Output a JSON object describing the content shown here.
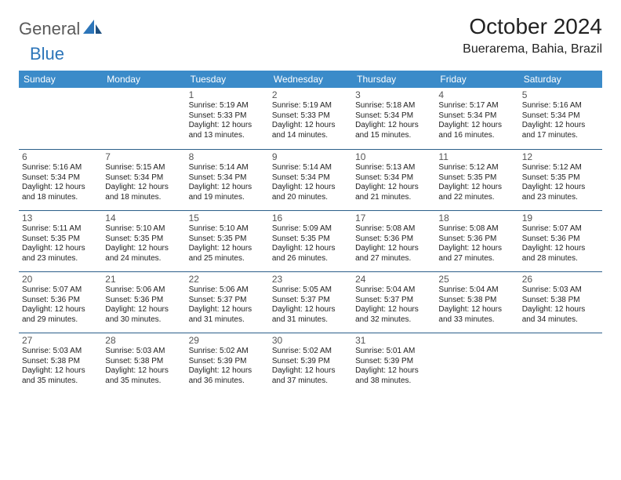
{
  "logo": {
    "part1": "General",
    "part2": "Blue"
  },
  "title": "October 2024",
  "location": "Buerarema, Bahia, Brazil",
  "colors": {
    "header_bg": "#3b8bc9",
    "header_text": "#ffffff",
    "border": "#2c5f8a",
    "logo_gray": "#5a5a5a",
    "logo_blue": "#2c75b9",
    "text": "#222222"
  },
  "day_names": [
    "Sunday",
    "Monday",
    "Tuesday",
    "Wednesday",
    "Thursday",
    "Friday",
    "Saturday"
  ],
  "weeks": [
    [
      null,
      null,
      {
        "d": "1",
        "sr": "Sunrise: 5:19 AM",
        "ss": "Sunset: 5:33 PM",
        "dl1": "Daylight: 12 hours",
        "dl2": "and 13 minutes."
      },
      {
        "d": "2",
        "sr": "Sunrise: 5:19 AM",
        "ss": "Sunset: 5:33 PM",
        "dl1": "Daylight: 12 hours",
        "dl2": "and 14 minutes."
      },
      {
        "d": "3",
        "sr": "Sunrise: 5:18 AM",
        "ss": "Sunset: 5:34 PM",
        "dl1": "Daylight: 12 hours",
        "dl2": "and 15 minutes."
      },
      {
        "d": "4",
        "sr": "Sunrise: 5:17 AM",
        "ss": "Sunset: 5:34 PM",
        "dl1": "Daylight: 12 hours",
        "dl2": "and 16 minutes."
      },
      {
        "d": "5",
        "sr": "Sunrise: 5:16 AM",
        "ss": "Sunset: 5:34 PM",
        "dl1": "Daylight: 12 hours",
        "dl2": "and 17 minutes."
      }
    ],
    [
      {
        "d": "6",
        "sr": "Sunrise: 5:16 AM",
        "ss": "Sunset: 5:34 PM",
        "dl1": "Daylight: 12 hours",
        "dl2": "and 18 minutes."
      },
      {
        "d": "7",
        "sr": "Sunrise: 5:15 AM",
        "ss": "Sunset: 5:34 PM",
        "dl1": "Daylight: 12 hours",
        "dl2": "and 18 minutes."
      },
      {
        "d": "8",
        "sr": "Sunrise: 5:14 AM",
        "ss": "Sunset: 5:34 PM",
        "dl1": "Daylight: 12 hours",
        "dl2": "and 19 minutes."
      },
      {
        "d": "9",
        "sr": "Sunrise: 5:14 AM",
        "ss": "Sunset: 5:34 PM",
        "dl1": "Daylight: 12 hours",
        "dl2": "and 20 minutes."
      },
      {
        "d": "10",
        "sr": "Sunrise: 5:13 AM",
        "ss": "Sunset: 5:34 PM",
        "dl1": "Daylight: 12 hours",
        "dl2": "and 21 minutes."
      },
      {
        "d": "11",
        "sr": "Sunrise: 5:12 AM",
        "ss": "Sunset: 5:35 PM",
        "dl1": "Daylight: 12 hours",
        "dl2": "and 22 minutes."
      },
      {
        "d": "12",
        "sr": "Sunrise: 5:12 AM",
        "ss": "Sunset: 5:35 PM",
        "dl1": "Daylight: 12 hours",
        "dl2": "and 23 minutes."
      }
    ],
    [
      {
        "d": "13",
        "sr": "Sunrise: 5:11 AM",
        "ss": "Sunset: 5:35 PM",
        "dl1": "Daylight: 12 hours",
        "dl2": "and 23 minutes."
      },
      {
        "d": "14",
        "sr": "Sunrise: 5:10 AM",
        "ss": "Sunset: 5:35 PM",
        "dl1": "Daylight: 12 hours",
        "dl2": "and 24 minutes."
      },
      {
        "d": "15",
        "sr": "Sunrise: 5:10 AM",
        "ss": "Sunset: 5:35 PM",
        "dl1": "Daylight: 12 hours",
        "dl2": "and 25 minutes."
      },
      {
        "d": "16",
        "sr": "Sunrise: 5:09 AM",
        "ss": "Sunset: 5:35 PM",
        "dl1": "Daylight: 12 hours",
        "dl2": "and 26 minutes."
      },
      {
        "d": "17",
        "sr": "Sunrise: 5:08 AM",
        "ss": "Sunset: 5:36 PM",
        "dl1": "Daylight: 12 hours",
        "dl2": "and 27 minutes."
      },
      {
        "d": "18",
        "sr": "Sunrise: 5:08 AM",
        "ss": "Sunset: 5:36 PM",
        "dl1": "Daylight: 12 hours",
        "dl2": "and 27 minutes."
      },
      {
        "d": "19",
        "sr": "Sunrise: 5:07 AM",
        "ss": "Sunset: 5:36 PM",
        "dl1": "Daylight: 12 hours",
        "dl2": "and 28 minutes."
      }
    ],
    [
      {
        "d": "20",
        "sr": "Sunrise: 5:07 AM",
        "ss": "Sunset: 5:36 PM",
        "dl1": "Daylight: 12 hours",
        "dl2": "and 29 minutes."
      },
      {
        "d": "21",
        "sr": "Sunrise: 5:06 AM",
        "ss": "Sunset: 5:36 PM",
        "dl1": "Daylight: 12 hours",
        "dl2": "and 30 minutes."
      },
      {
        "d": "22",
        "sr": "Sunrise: 5:06 AM",
        "ss": "Sunset: 5:37 PM",
        "dl1": "Daylight: 12 hours",
        "dl2": "and 31 minutes."
      },
      {
        "d": "23",
        "sr": "Sunrise: 5:05 AM",
        "ss": "Sunset: 5:37 PM",
        "dl1": "Daylight: 12 hours",
        "dl2": "and 31 minutes."
      },
      {
        "d": "24",
        "sr": "Sunrise: 5:04 AM",
        "ss": "Sunset: 5:37 PM",
        "dl1": "Daylight: 12 hours",
        "dl2": "and 32 minutes."
      },
      {
        "d": "25",
        "sr": "Sunrise: 5:04 AM",
        "ss": "Sunset: 5:38 PM",
        "dl1": "Daylight: 12 hours",
        "dl2": "and 33 minutes."
      },
      {
        "d": "26",
        "sr": "Sunrise: 5:03 AM",
        "ss": "Sunset: 5:38 PM",
        "dl1": "Daylight: 12 hours",
        "dl2": "and 34 minutes."
      }
    ],
    [
      {
        "d": "27",
        "sr": "Sunrise: 5:03 AM",
        "ss": "Sunset: 5:38 PM",
        "dl1": "Daylight: 12 hours",
        "dl2": "and 35 minutes."
      },
      {
        "d": "28",
        "sr": "Sunrise: 5:03 AM",
        "ss": "Sunset: 5:38 PM",
        "dl1": "Daylight: 12 hours",
        "dl2": "and 35 minutes."
      },
      {
        "d": "29",
        "sr": "Sunrise: 5:02 AM",
        "ss": "Sunset: 5:39 PM",
        "dl1": "Daylight: 12 hours",
        "dl2": "and 36 minutes."
      },
      {
        "d": "30",
        "sr": "Sunrise: 5:02 AM",
        "ss": "Sunset: 5:39 PM",
        "dl1": "Daylight: 12 hours",
        "dl2": "and 37 minutes."
      },
      {
        "d": "31",
        "sr": "Sunrise: 5:01 AM",
        "ss": "Sunset: 5:39 PM",
        "dl1": "Daylight: 12 hours",
        "dl2": "and 38 minutes."
      },
      null,
      null
    ]
  ]
}
